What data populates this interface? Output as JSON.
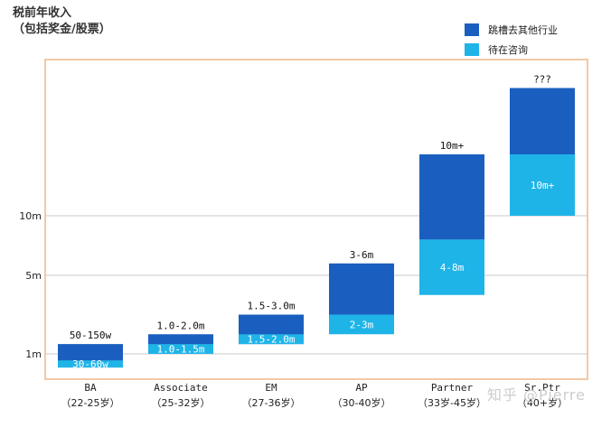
{
  "ylabel": {
    "line1": "税前年收入",
    "line2": "（包括奖金/股票）"
  },
  "legend": [
    {
      "label": "跳槽去其他行业",
      "color": "#1a5fbf"
    },
    {
      "label": "待在咨询",
      "color": "#1fb4e8"
    }
  ],
  "watermark": "知乎 @Pierre",
  "chart_data": {
    "type": "bar",
    "subtype": "floating-range-stacked",
    "ytick_labels": [
      "1m",
      "5m",
      "10m"
    ],
    "ytick_values": [
      1,
      5,
      10
    ],
    "ylim": [
      0,
      25
    ],
    "grid": true,
    "legend_position": "top-right",
    "categories": [
      {
        "name": "BA",
        "age": "（22-25岁）"
      },
      {
        "name": "Associate",
        "age": "（25-32岁）"
      },
      {
        "name": "EM",
        "age": "（27-36岁）"
      },
      {
        "name": "AP",
        "age": "（30-40岁）"
      },
      {
        "name": "Partner",
        "age": "（33岁-45岁）"
      },
      {
        "name": "Sr.Ptr",
        "age": "（40+岁）"
      }
    ],
    "series": [
      {
        "name": "跳槽去其他行业",
        "labels": [
          "50-150w",
          "1.0-2.0m",
          "1.5-3.0m",
          "3-6m",
          "10m+",
          "???"
        ],
        "ranges": [
          [
            0.5,
            1.5
          ],
          [
            1.0,
            2.0
          ],
          [
            1.5,
            3.0
          ],
          [
            3,
            6
          ],
          [
            8,
            15
          ],
          [
            10,
            22
          ]
        ]
      },
      {
        "name": "待在咨询",
        "labels": [
          "30-60w",
          "1.0-1.5m",
          "1.5-2.0m",
          "2-3m",
          "4-8m",
          "10m+"
        ],
        "ranges": [
          [
            0.3,
            0.6
          ],
          [
            1.0,
            1.5
          ],
          [
            1.5,
            2.0
          ],
          [
            2,
            3
          ],
          [
            4,
            8
          ],
          [
            10,
            15
          ]
        ]
      }
    ]
  }
}
